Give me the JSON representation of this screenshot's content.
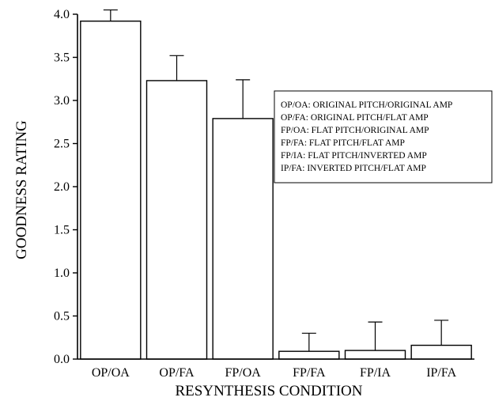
{
  "chart_data": {
    "type": "bar",
    "categories": [
      "OP/OA",
      "OP/FA",
      "FP/OA",
      "FP/FA",
      "FP/IA",
      "IP/FA"
    ],
    "values": [
      3.92,
      3.23,
      2.79,
      0.09,
      0.1,
      0.16
    ],
    "error_bars_upper": [
      0.13,
      0.29,
      0.45,
      0.21,
      0.33,
      0.29
    ],
    "xlabel": "RESYNTHESIS CONDITION",
    "ylabel": "GOODNESS RATING",
    "ylim": [
      0,
      4.0
    ],
    "yticks": [
      "0.0",
      "0.5",
      "1.0",
      "1.5",
      "2.0",
      "2.5",
      "3.0",
      "3.5",
      "4.0"
    ],
    "grid": false,
    "legend_position": "right",
    "legend": [
      "OP/OA: ORIGINAL PITCH/ORIGINAL AMP",
      "OP/FA: ORIGINAL PITCH/FLAT AMP",
      "FP/OA: FLAT PITCH/ORIGINAL AMP",
      "FP/FA: FLAT PITCH/FLAT AMP",
      "FP/IA: FLAT PITCH/INVERTED AMP",
      "IP/FA: INVERTED PITCH/FLAT AMP"
    ],
    "colors": {
      "bar_fill": "#ffffff",
      "stroke": "#000000"
    }
  }
}
